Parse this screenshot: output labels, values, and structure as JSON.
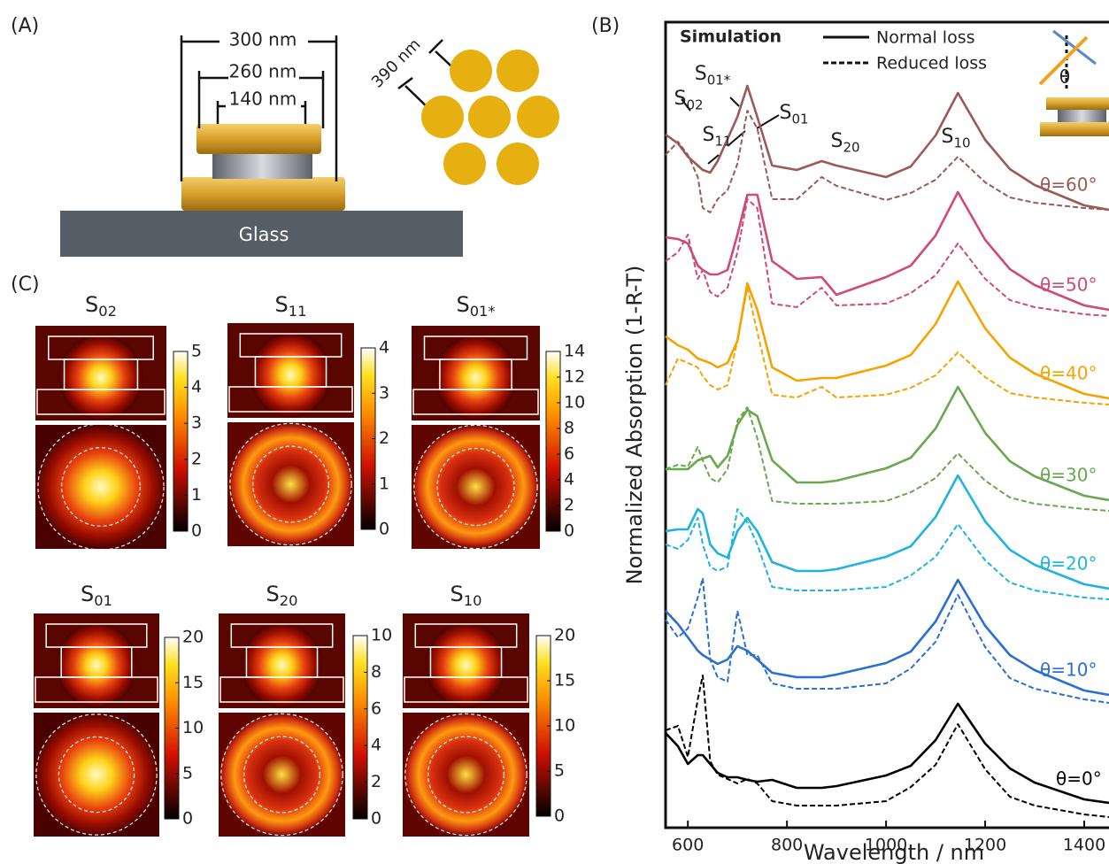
{
  "panel_a": {
    "label": "(A)",
    "dim_outer": "300 nm",
    "dim_mid": "260 nm",
    "dim_inner": "140 nm",
    "pitch": "390 nm",
    "substrate": "Glass"
  },
  "chart_data": {
    "type": "line",
    "label": "(B)",
    "title": "Simulation",
    "legend": {
      "solid": "Normal loss",
      "dashed": "Reduced loss"
    },
    "x_label": "Wavelength / nm",
    "y_label": "Normalized Absorption (1-R-T)",
    "xlim": [
      555,
      1450
    ],
    "ylim": [
      0,
      9.1
    ],
    "xticks": [
      600,
      800,
      1000,
      1200,
      1400
    ],
    "x": [
      555,
      580,
      600,
      620,
      630,
      645,
      660,
      680,
      700,
      720,
      740,
      770,
      820,
      870,
      900,
      1000,
      1050,
      1100,
      1145,
      1200,
      1250,
      1300,
      1400,
      1450
    ],
    "series": [
      {
        "name": "θ=60°",
        "color": "#9b5a55",
        "values": [
          7.83,
          7.73,
          7.58,
          7.48,
          7.43,
          7.4,
          7.53,
          7.78,
          8.03,
          8.38,
          8.03,
          7.48,
          7.43,
          7.53,
          7.48,
          7.35,
          7.47,
          7.82,
          8.3,
          7.77,
          7.44,
          7.26,
          7.03,
          6.98
        ],
        "values_reduced": [
          7.6,
          7.75,
          7.6,
          7.35,
          7.0,
          6.95,
          7.1,
          7.2,
          7.5,
          8.1,
          7.9,
          7.1,
          7.1,
          7.35,
          7.25,
          7.09,
          7.17,
          7.32,
          7.58,
          7.29,
          7.12,
          7.06,
          7.0,
          6.98
        ]
      },
      {
        "name": "θ=50°",
        "color": "#cf4a7a",
        "values": [
          6.67,
          6.65,
          6.6,
          6.35,
          6.3,
          6.25,
          6.25,
          6.3,
          6.7,
          7.15,
          7.15,
          6.4,
          6.2,
          6.22,
          6.02,
          6.22,
          6.35,
          6.69,
          7.18,
          6.64,
          6.31,
          6.13,
          5.9,
          5.85
        ],
        "values_reduced": [
          6.4,
          6.5,
          6.7,
          6.2,
          6.3,
          6.05,
          6.0,
          6.1,
          6.5,
          7.1,
          7.0,
          5.92,
          5.88,
          6.1,
          5.9,
          5.92,
          6.04,
          6.24,
          6.6,
          6.2,
          5.96,
          5.88,
          5.8,
          5.78
        ]
      },
      {
        "name": "θ=40°",
        "color": "#f5a300",
        "values": [
          5.55,
          5.45,
          5.4,
          5.3,
          5.28,
          5.25,
          5.2,
          5.25,
          5.5,
          6.15,
          5.85,
          5.2,
          5.05,
          5.08,
          5.08,
          5.22,
          5.34,
          5.69,
          6.17,
          5.64,
          5.31,
          5.13,
          4.9,
          4.85
        ],
        "values_reduced": [
          5.0,
          5.3,
          5.25,
          5.2,
          5.1,
          5.0,
          4.95,
          5.0,
          5.5,
          6.1,
          5.6,
          4.89,
          4.86,
          4.98,
          4.86,
          4.89,
          4.97,
          5.11,
          5.37,
          5.09,
          4.91,
          4.86,
          4.8,
          4.78
        ]
      },
      {
        "name": "θ=30°",
        "color": "#6aa84f",
        "values": [
          4.05,
          4.05,
          4.05,
          4.15,
          4.17,
          4.2,
          4.07,
          4.2,
          4.55,
          4.72,
          4.65,
          4.15,
          3.9,
          3.9,
          3.92,
          4.06,
          4.18,
          4.51,
          4.98,
          4.46,
          4.14,
          3.97,
          3.75,
          3.7
        ],
        "values_reduced": [
          4.05,
          4.1,
          4.08,
          4.3,
          4.15,
          3.95,
          3.9,
          4.05,
          4.6,
          4.75,
          4.4,
          3.69,
          3.66,
          3.66,
          3.66,
          3.69,
          3.79,
          3.95,
          4.23,
          3.92,
          3.73,
          3.66,
          3.6,
          3.58
        ]
      },
      {
        "name": "θ=20°",
        "color": "#1fb3e0",
        "values": [
          3.35,
          3.37,
          3.37,
          3.6,
          3.55,
          3.2,
          3.1,
          3.05,
          3.35,
          3.5,
          3.35,
          3.0,
          2.9,
          2.9,
          2.92,
          3.06,
          3.18,
          3.51,
          3.98,
          3.46,
          3.14,
          2.97,
          2.75,
          2.7
        ],
        "values_reduced": [
          3.2,
          3.15,
          3.25,
          3.5,
          3.2,
          2.95,
          2.9,
          2.95,
          3.6,
          3.45,
          3.2,
          2.72,
          2.68,
          2.68,
          2.68,
          2.72,
          2.85,
          3.06,
          3.43,
          3.02,
          2.77,
          2.68,
          2.6,
          2.58
        ]
      },
      {
        "name": "θ=10°",
        "color": "#2a6fd1",
        "values": [
          2.45,
          2.3,
          2.15,
          2.0,
          1.95,
          1.9,
          1.85,
          1.9,
          2.05,
          2.0,
          1.9,
          1.75,
          1.7,
          1.7,
          1.73,
          1.86,
          1.99,
          2.33,
          2.8,
          2.28,
          1.95,
          1.78,
          1.55,
          1.5
        ],
        "values_reduced": [
          2.35,
          2.15,
          2.25,
          2.6,
          2.82,
          1.9,
          1.7,
          1.65,
          2.45,
          1.95,
          1.95,
          1.63,
          1.57,
          1.57,
          1.57,
          1.63,
          1.8,
          2.1,
          2.63,
          2.04,
          1.69,
          1.57,
          1.45,
          1.41
        ]
      },
      {
        "name": "θ=0°",
        "color": "#000000",
        "values": [
          1.07,
          0.92,
          0.72,
          0.82,
          0.82,
          0.72,
          0.62,
          0.57,
          0.57,
          0.54,
          0.52,
          0.54,
          0.45,
          0.45,
          0.47,
          0.59,
          0.7,
          0.99,
          1.4,
          0.95,
          0.67,
          0.51,
          0.32,
          0.28
        ],
        "values_reduced": [
          1.1,
          1.15,
          0.8,
          1.45,
          1.72,
          0.75,
          0.6,
          0.55,
          0.5,
          0.55,
          0.5,
          0.3,
          0.25,
          0.25,
          0.25,
          0.3,
          0.46,
          0.71,
          1.17,
          0.66,
          0.35,
          0.25,
          0.15,
          0.12
        ]
      }
    ],
    "modes": [
      {
        "main": "S",
        "sub": "02"
      },
      {
        "main": "S",
        "sub": "01*"
      },
      {
        "main": "S",
        "sub": "11"
      },
      {
        "main": "S",
        "sub": "01"
      },
      {
        "main": "S",
        "sub": "20"
      },
      {
        "main": "S",
        "sub": "10"
      }
    ],
    "inset_angle": "θ"
  },
  "panel_c": {
    "label": "(C)",
    "maps": [
      {
        "mode": {
          "main": "S",
          "sub": "02"
        },
        "ticks": [
          0,
          1,
          2,
          3,
          4,
          5
        ]
      },
      {
        "mode": {
          "main": "S",
          "sub": "11"
        },
        "ticks": [
          0,
          1,
          2,
          3,
          4
        ]
      },
      {
        "mode": {
          "main": "S",
          "sub": "01*"
        },
        "ticks": [
          0,
          2,
          4,
          6,
          8,
          10,
          12,
          14
        ]
      },
      {
        "mode": {
          "main": "S",
          "sub": "01"
        },
        "ticks": [
          0,
          5,
          10,
          15,
          20
        ]
      },
      {
        "mode": {
          "main": "S",
          "sub": "20"
        },
        "ticks": [
          0,
          2,
          4,
          6,
          8,
          10
        ]
      },
      {
        "mode": {
          "main": "S",
          "sub": "10"
        },
        "ticks": [
          0,
          5,
          10,
          15,
          20
        ]
      }
    ]
  }
}
